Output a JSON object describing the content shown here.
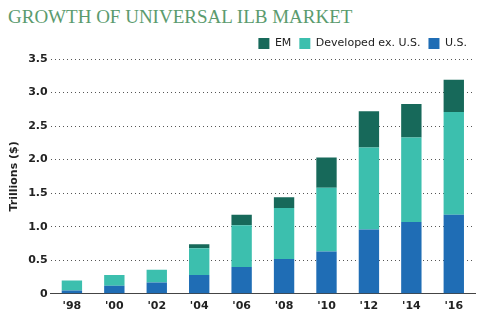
{
  "chart_data": {
    "type": "bar",
    "title": "GROWTH OF UNIVERSAL ILB MARKET",
    "y_label": "Trillions ($)",
    "categories": [
      "'98",
      "'00",
      "'02",
      "'04",
      "'06",
      "'08",
      "'10",
      "'12",
      "'14",
      "'16"
    ],
    "series": [
      {
        "name": "U.S.",
        "color": "#1f6db5",
        "values": [
          0.05,
          0.12,
          0.17,
          0.28,
          0.4,
          0.52,
          0.63,
          0.96,
          1.07,
          1.18
        ]
      },
      {
        "name": "Developed ex. U.S.",
        "color": "#3cbfae",
        "values": [
          0.15,
          0.16,
          0.19,
          0.4,
          0.62,
          0.76,
          0.95,
          1.22,
          1.26,
          1.53
        ]
      },
      {
        "name": "EM",
        "color": "#17695a",
        "values": [
          0,
          0,
          0,
          0.06,
          0.16,
          0.16,
          0.45,
          0.54,
          0.5,
          0.48
        ]
      }
    ],
    "stacked": true,
    "ylim": [
      0,
      3.5
    ],
    "yticks": [
      0,
      0.5,
      {
        "value": 1,
        "label": "1.0"
      },
      1.5,
      {
        "value": 2,
        "label": "2.0"
      },
      2.5,
      {
        "value": 3,
        "label": "3.0"
      },
      3.5
    ],
    "grid": true,
    "legend": "top-right"
  }
}
